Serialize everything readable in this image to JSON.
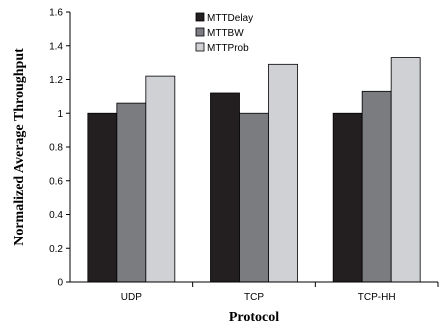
{
  "chart_data": {
    "type": "bar",
    "title": "",
    "xlabel": "Protocol",
    "ylabel": "Normalized Average Throughput",
    "categories": [
      "UDP",
      "TCP",
      "TCP-HH"
    ],
    "series": [
      {
        "name": "MTTDelay",
        "values": [
          1.0,
          1.12,
          1.0
        ],
        "color": "#231f20"
      },
      {
        "name": "MTTBW",
        "values": [
          1.06,
          1.0,
          1.13
        ],
        "color": "#7a7c80"
      },
      {
        "name": "MTTProb",
        "values": [
          1.22,
          1.29,
          1.33
        ],
        "color": "#cfd1d4"
      }
    ],
    "ylim": [
      0,
      1.6
    ],
    "yticks": [
      "0",
      "0.2",
      "0.4",
      "0.6",
      "0.8",
      "1",
      "1.2",
      "1.4",
      "1.6"
    ],
    "grid": false,
    "legend_position": "top-center"
  }
}
